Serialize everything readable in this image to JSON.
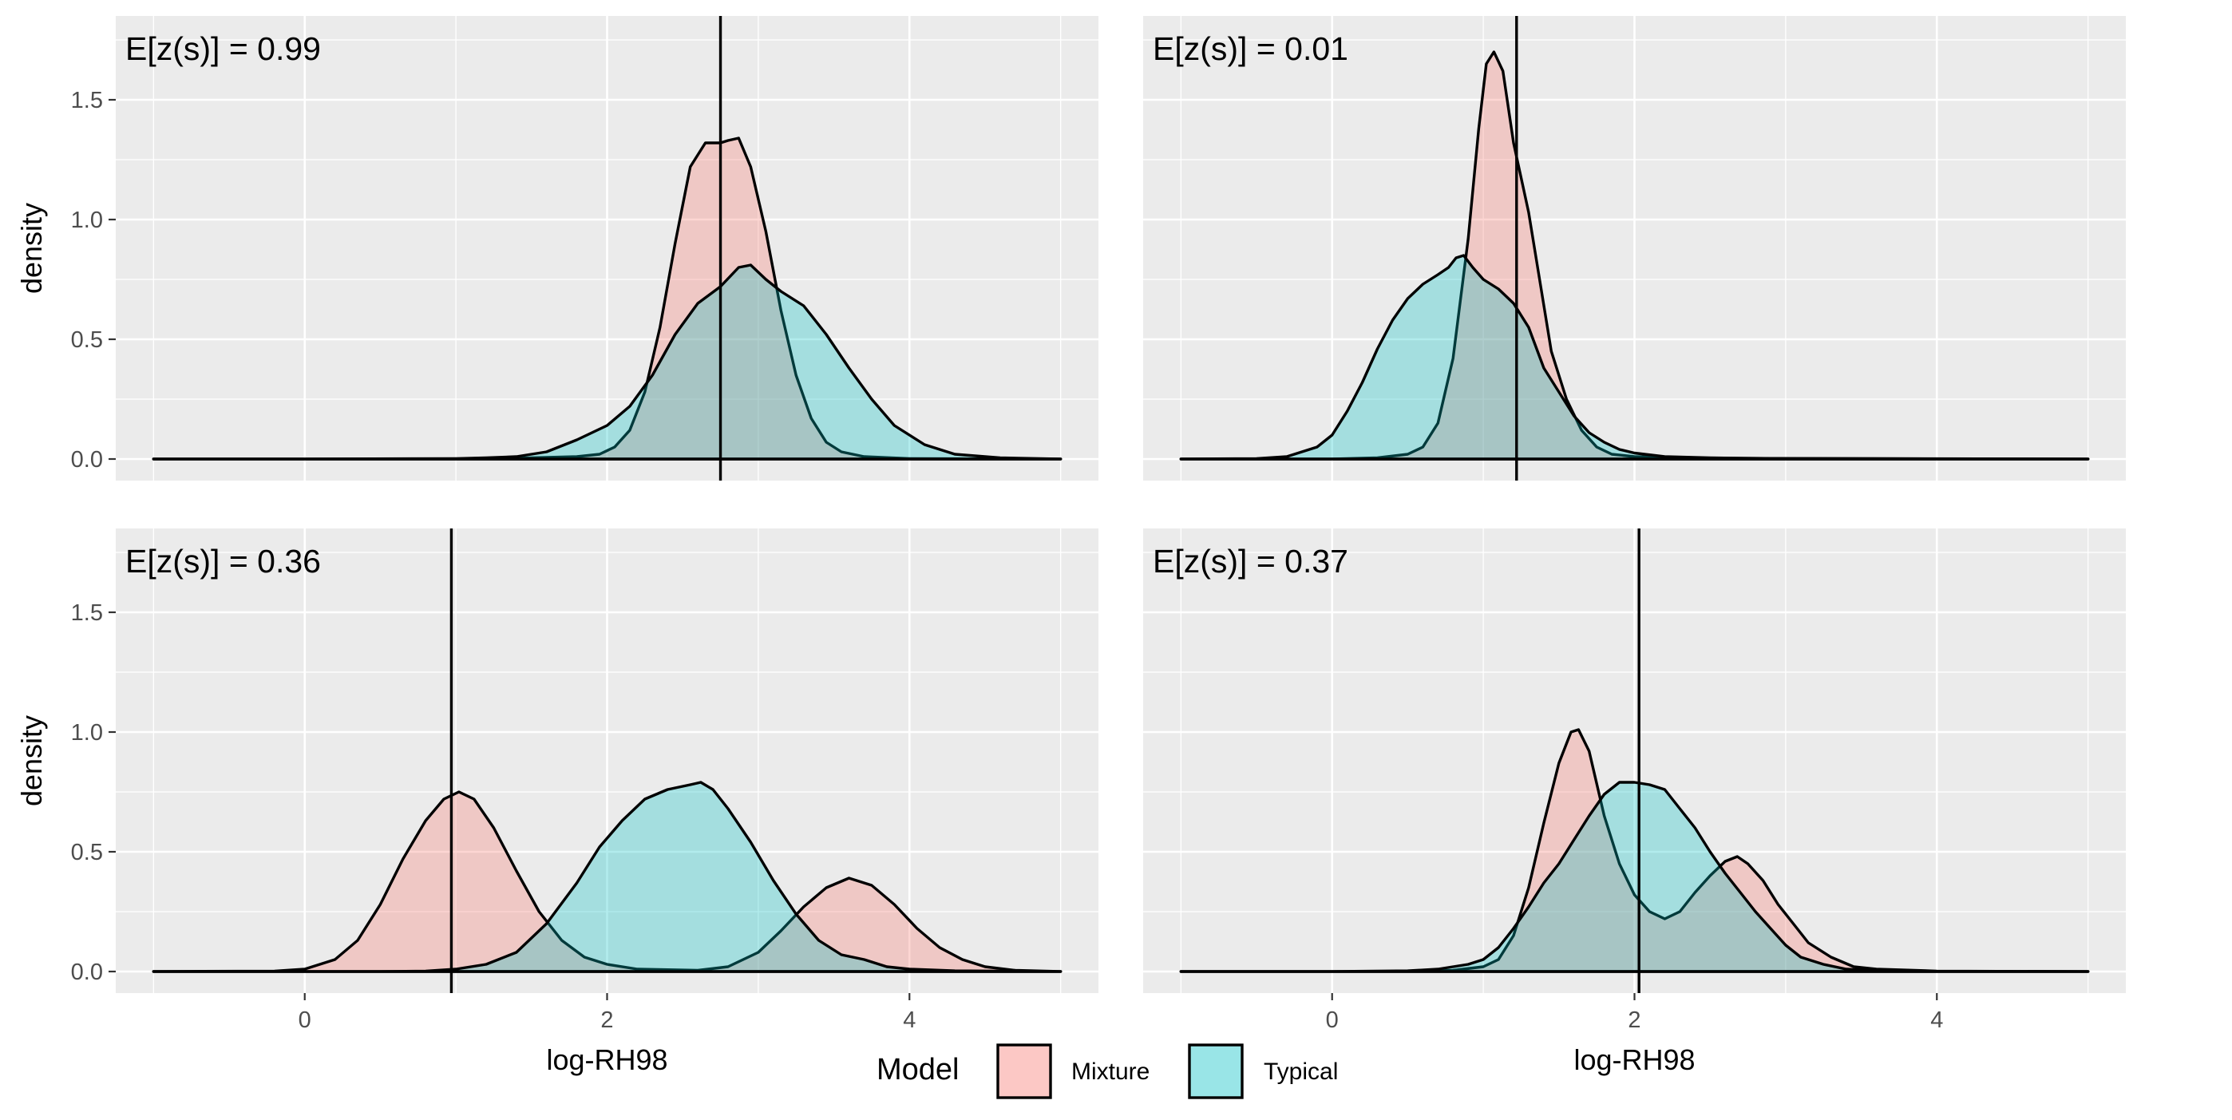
{
  "chart_data": {
    "type": "area",
    "xlabel": "log-RH98",
    "ylabel": "density",
    "xlim": [
      -1.25,
      5.25
    ],
    "ylim": [
      -0.09,
      1.85
    ],
    "xticks": [
      0,
      2,
      4
    ],
    "yticks": [
      0.0,
      0.5,
      1.0,
      1.5
    ],
    "legend": {
      "title": "Model",
      "position": "bottom",
      "entries": [
        {
          "label": "Mixture",
          "color": "#F8766D"
        },
        {
          "label": "Typical",
          "color": "#00BFC4"
        }
      ]
    },
    "panels": [
      {
        "annotation": "E[z(s)] = 0.99",
        "vline": 2.75,
        "show_ylabel": true,
        "show_xaxis": false,
        "series": [
          {
            "name": "Mixture",
            "points": [
              [
                -1,
                0
              ],
              [
                1.2,
                0
              ],
              [
                1.5,
                0.005
              ],
              [
                1.8,
                0.01
              ],
              [
                1.95,
                0.02
              ],
              [
                2.05,
                0.05
              ],
              [
                2.15,
                0.12
              ],
              [
                2.25,
                0.28
              ],
              [
                2.35,
                0.55
              ],
              [
                2.45,
                0.9
              ],
              [
                2.55,
                1.22
              ],
              [
                2.65,
                1.32
              ],
              [
                2.75,
                1.32
              ],
              [
                2.8,
                1.33
              ],
              [
                2.87,
                1.34
              ],
              [
                2.95,
                1.22
              ],
              [
                3.05,
                0.95
              ],
              [
                3.15,
                0.62
              ],
              [
                3.25,
                0.35
              ],
              [
                3.35,
                0.17
              ],
              [
                3.45,
                0.07
              ],
              [
                3.55,
                0.03
              ],
              [
                3.7,
                0.01
              ],
              [
                4,
                0.002
              ],
              [
                5,
                0
              ]
            ]
          },
          {
            "name": "Typical",
            "points": [
              [
                -1,
                0
              ],
              [
                0,
                0
              ],
              [
                1.0,
                0.002
              ],
              [
                1.2,
                0.005
              ],
              [
                1.4,
                0.01
              ],
              [
                1.6,
                0.03
              ],
              [
                1.8,
                0.08
              ],
              [
                2.0,
                0.14
              ],
              [
                2.15,
                0.22
              ],
              [
                2.3,
                0.35
              ],
              [
                2.45,
                0.52
              ],
              [
                2.6,
                0.65
              ],
              [
                2.75,
                0.72
              ],
              [
                2.87,
                0.8
              ],
              [
                2.95,
                0.81
              ],
              [
                3.05,
                0.75
              ],
              [
                3.15,
                0.7
              ],
              [
                3.3,
                0.64
              ],
              [
                3.45,
                0.52
              ],
              [
                3.6,
                0.38
              ],
              [
                3.75,
                0.25
              ],
              [
                3.9,
                0.14
              ],
              [
                4.1,
                0.06
              ],
              [
                4.3,
                0.02
              ],
              [
                4.6,
                0.005
              ],
              [
                5,
                0
              ]
            ]
          }
        ]
      },
      {
        "annotation": "E[z(s)] = 0.01",
        "vline": 1.22,
        "show_ylabel": false,
        "show_xaxis": false,
        "series": [
          {
            "name": "Mixture",
            "points": [
              [
                -1,
                0
              ],
              [
                0,
                0
              ],
              [
                0.3,
                0.005
              ],
              [
                0.5,
                0.02
              ],
              [
                0.6,
                0.05
              ],
              [
                0.7,
                0.15
              ],
              [
                0.8,
                0.42
              ],
              [
                0.9,
                0.92
              ],
              [
                0.97,
                1.38
              ],
              [
                1.02,
                1.65
              ],
              [
                1.07,
                1.7
              ],
              [
                1.13,
                1.62
              ],
              [
                1.2,
                1.32
              ],
              [
                1.3,
                1.03
              ],
              [
                1.38,
                0.72
              ],
              [
                1.45,
                0.45
              ],
              [
                1.55,
                0.25
              ],
              [
                1.65,
                0.12
              ],
              [
                1.75,
                0.05
              ],
              [
                1.85,
                0.02
              ],
              [
                2.0,
                0.01
              ],
              [
                2.5,
                0.003
              ],
              [
                5,
                0
              ]
            ]
          },
          {
            "name": "Typical",
            "points": [
              [
                -1,
                0
              ],
              [
                -0.5,
                0.002
              ],
              [
                -0.3,
                0.01
              ],
              [
                -0.1,
                0.05
              ],
              [
                0.0,
                0.1
              ],
              [
                0.1,
                0.2
              ],
              [
                0.2,
                0.32
              ],
              [
                0.3,
                0.46
              ],
              [
                0.4,
                0.58
              ],
              [
                0.5,
                0.67
              ],
              [
                0.6,
                0.73
              ],
              [
                0.7,
                0.77
              ],
              [
                0.77,
                0.8
              ],
              [
                0.82,
                0.84
              ],
              [
                0.87,
                0.85
              ],
              [
                0.93,
                0.8
              ],
              [
                1.0,
                0.75
              ],
              [
                1.1,
                0.71
              ],
              [
                1.2,
                0.65
              ],
              [
                1.3,
                0.55
              ],
              [
                1.4,
                0.38
              ],
              [
                1.5,
                0.28
              ],
              [
                1.6,
                0.18
              ],
              [
                1.7,
                0.11
              ],
              [
                1.8,
                0.07
              ],
              [
                1.9,
                0.04
              ],
              [
                2.0,
                0.025
              ],
              [
                2.2,
                0.01
              ],
              [
                2.5,
                0.005
              ],
              [
                3,
                0.002
              ],
              [
                5,
                0
              ]
            ]
          }
        ]
      },
      {
        "annotation": "E[z(s)] = 0.36",
        "vline": 0.97,
        "show_ylabel": true,
        "show_xaxis": true,
        "series": [
          {
            "name": "Mixture",
            "points": [
              [
                -1,
                0
              ],
              [
                -0.2,
                0.002
              ],
              [
                0,
                0.01
              ],
              [
                0.2,
                0.05
              ],
              [
                0.35,
                0.13
              ],
              [
                0.5,
                0.28
              ],
              [
                0.65,
                0.47
              ],
              [
                0.8,
                0.63
              ],
              [
                0.92,
                0.72
              ],
              [
                1.02,
                0.75
              ],
              [
                1.12,
                0.72
              ],
              [
                1.25,
                0.6
              ],
              [
                1.4,
                0.42
              ],
              [
                1.55,
                0.25
              ],
              [
                1.7,
                0.13
              ],
              [
                1.85,
                0.06
              ],
              [
                2.0,
                0.03
              ],
              [
                2.2,
                0.01
              ],
              [
                2.6,
                0.005
              ],
              [
                2.8,
                0.02
              ],
              [
                3.0,
                0.08
              ],
              [
                3.15,
                0.17
              ],
              [
                3.3,
                0.27
              ],
              [
                3.45,
                0.35
              ],
              [
                3.6,
                0.39
              ],
              [
                3.75,
                0.36
              ],
              [
                3.9,
                0.28
              ],
              [
                4.05,
                0.18
              ],
              [
                4.2,
                0.1
              ],
              [
                4.35,
                0.05
              ],
              [
                4.5,
                0.02
              ],
              [
                4.7,
                0.005
              ],
              [
                5,
                0
              ]
            ]
          },
          {
            "name": "Typical",
            "points": [
              [
                -1,
                0
              ],
              [
                0.5,
                0
              ],
              [
                0.8,
                0.002
              ],
              [
                1.0,
                0.01
              ],
              [
                1.2,
                0.03
              ],
              [
                1.4,
                0.08
              ],
              [
                1.6,
                0.2
              ],
              [
                1.8,
                0.37
              ],
              [
                1.95,
                0.52
              ],
              [
                2.1,
                0.63
              ],
              [
                2.25,
                0.72
              ],
              [
                2.4,
                0.76
              ],
              [
                2.55,
                0.78
              ],
              [
                2.62,
                0.79
              ],
              [
                2.7,
                0.76
              ],
              [
                2.8,
                0.68
              ],
              [
                2.95,
                0.54
              ],
              [
                3.1,
                0.38
              ],
              [
                3.25,
                0.24
              ],
              [
                3.4,
                0.13
              ],
              [
                3.55,
                0.07
              ],
              [
                3.7,
                0.05
              ],
              [
                3.85,
                0.02
              ],
              [
                4.0,
                0.01
              ],
              [
                4.3,
                0.003
              ],
              [
                5,
                0
              ]
            ]
          }
        ]
      },
      {
        "annotation": "E[z(s)] = 0.37",
        "vline": 2.03,
        "show_ylabel": false,
        "show_xaxis": true,
        "series": [
          {
            "name": "Mixture",
            "points": [
              [
                -1,
                0
              ],
              [
                0.5,
                0
              ],
              [
                0.8,
                0.005
              ],
              [
                1.0,
                0.02
              ],
              [
                1.1,
                0.05
              ],
              [
                1.2,
                0.15
              ],
              [
                1.3,
                0.35
              ],
              [
                1.4,
                0.62
              ],
              [
                1.5,
                0.87
              ],
              [
                1.58,
                1.0
              ],
              [
                1.63,
                1.01
              ],
              [
                1.7,
                0.92
              ],
              [
                1.8,
                0.65
              ],
              [
                1.9,
                0.45
              ],
              [
                2.0,
                0.32
              ],
              [
                2.1,
                0.25
              ],
              [
                2.2,
                0.22
              ],
              [
                2.3,
                0.25
              ],
              [
                2.4,
                0.33
              ],
              [
                2.5,
                0.4
              ],
              [
                2.6,
                0.46
              ],
              [
                2.68,
                0.48
              ],
              [
                2.75,
                0.45
              ],
              [
                2.85,
                0.38
              ],
              [
                2.95,
                0.28
              ],
              [
                3.05,
                0.2
              ],
              [
                3.15,
                0.12
              ],
              [
                3.3,
                0.06
              ],
              [
                3.45,
                0.02
              ],
              [
                3.6,
                0.01
              ],
              [
                4,
                0.002
              ],
              [
                5,
                0
              ]
            ]
          },
          {
            "name": "Typical",
            "points": [
              [
                -1,
                0
              ],
              [
                0,
                0
              ],
              [
                0.5,
                0.003
              ],
              [
                0.7,
                0.01
              ],
              [
                0.9,
                0.03
              ],
              [
                1.0,
                0.05
              ],
              [
                1.1,
                0.1
              ],
              [
                1.2,
                0.18
              ],
              [
                1.3,
                0.27
              ],
              [
                1.4,
                0.37
              ],
              [
                1.5,
                0.45
              ],
              [
                1.6,
                0.55
              ],
              [
                1.7,
                0.65
              ],
              [
                1.8,
                0.74
              ],
              [
                1.9,
                0.79
              ],
              [
                2.0,
                0.79
              ],
              [
                2.1,
                0.78
              ],
              [
                2.2,
                0.76
              ],
              [
                2.3,
                0.68
              ],
              [
                2.4,
                0.6
              ],
              [
                2.5,
                0.5
              ],
              [
                2.6,
                0.41
              ],
              [
                2.7,
                0.33
              ],
              [
                2.8,
                0.25
              ],
              [
                2.9,
                0.18
              ],
              [
                3.0,
                0.11
              ],
              [
                3.1,
                0.06
              ],
              [
                3.25,
                0.03
              ],
              [
                3.4,
                0.01
              ],
              [
                3.6,
                0.004
              ],
              [
                4,
                0.001
              ],
              [
                5,
                0
              ]
            ]
          }
        ]
      }
    ]
  }
}
